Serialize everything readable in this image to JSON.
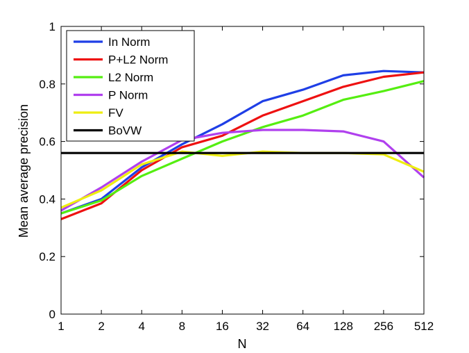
{
  "chart_data": {
    "type": "line",
    "xlabel": "N",
    "ylabel": "Mean average precision",
    "x": [
      1,
      2,
      4,
      8,
      16,
      32,
      64,
      128,
      256,
      512
    ],
    "xticklabels": [
      "1",
      "2",
      "4",
      "8",
      "16",
      "32",
      "64",
      "128",
      "256",
      "512"
    ],
    "xscale": "log2",
    "ylim": [
      0,
      1
    ],
    "yticks": [
      0,
      0.2,
      0.4,
      0.6,
      0.8,
      1
    ],
    "yticklabels": [
      "0",
      "0.2",
      "0.4",
      "0.6",
      "0.8",
      "1"
    ],
    "grid": false,
    "legend_position": "top-left",
    "series": [
      {
        "name": "In Norm",
        "color": "#1f3fe6",
        "values": [
          0.35,
          0.4,
          0.51,
          0.59,
          0.66,
          0.74,
          0.78,
          0.83,
          0.845,
          0.84
        ]
      },
      {
        "name": "P+L2 Norm",
        "color": "#ee1111",
        "values": [
          0.33,
          0.385,
          0.5,
          0.58,
          0.62,
          0.69,
          0.74,
          0.79,
          0.825,
          0.84
        ]
      },
      {
        "name": "L2 Norm",
        "color": "#55ee11",
        "values": [
          0.35,
          0.395,
          0.48,
          0.54,
          0.6,
          0.65,
          0.69,
          0.745,
          0.775,
          0.81
        ]
      },
      {
        "name": "P Norm",
        "color": "#b040ee",
        "values": [
          0.36,
          0.44,
          0.53,
          0.605,
          0.63,
          0.64,
          0.64,
          0.635,
          0.6,
          0.475
        ]
      },
      {
        "name": "FV",
        "color": "#eeee11",
        "values": [
          0.37,
          0.43,
          0.52,
          0.565,
          0.55,
          0.565,
          0.56,
          0.56,
          0.555,
          0.495
        ]
      },
      {
        "name": "BoVW",
        "color": "#000000",
        "values": [
          0.56,
          0.56,
          0.56,
          0.56,
          0.56,
          0.56,
          0.56,
          0.56,
          0.56,
          0.56
        ]
      }
    ]
  }
}
